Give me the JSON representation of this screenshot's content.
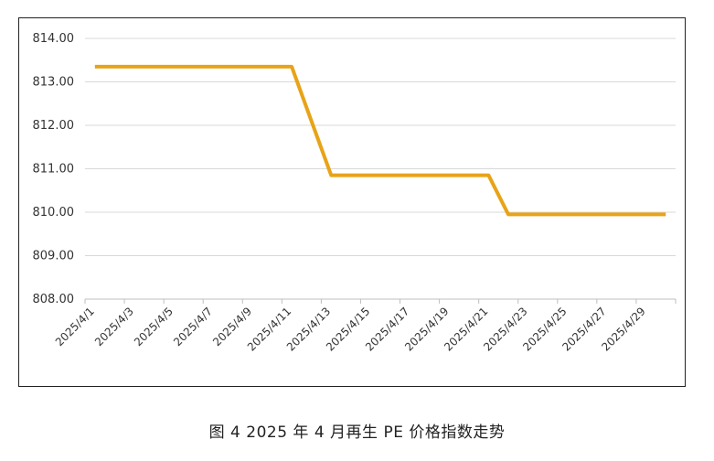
{
  "caption": "图 4  2025 年 4 月再生 PE 价格指数走势",
  "chart_data": {
    "type": "line",
    "title": "",
    "xlabel": "",
    "ylabel": "",
    "ylim": [
      808,
      814
    ],
    "yticks": [
      "808.00",
      "809.00",
      "810.00",
      "811.00",
      "812.00",
      "813.00",
      "814.00"
    ],
    "ytick_values": [
      808,
      809,
      810,
      811,
      812,
      813,
      814
    ],
    "grid": true,
    "x": [
      "2025/4/1",
      "2025/4/2",
      "2025/4/3",
      "2025/4/4",
      "2025/4/5",
      "2025/4/6",
      "2025/4/7",
      "2025/4/8",
      "2025/4/9",
      "2025/4/10",
      "2025/4/11",
      "2025/4/12",
      "2025/4/13",
      "2025/4/14",
      "2025/4/15",
      "2025/4/16",
      "2025/4/17",
      "2025/4/18",
      "2025/4/19",
      "2025/4/20",
      "2025/4/21",
      "2025/4/22",
      "2025/4/23",
      "2025/4/24",
      "2025/4/25",
      "2025/4/26",
      "2025/4/27",
      "2025/4/28",
      "2025/4/29",
      "2025/4/30"
    ],
    "xtick_labels": [
      "2025/4/1",
      "2025/4/3",
      "2025/4/5",
      "2025/4/7",
      "2025/4/9",
      "2025/4/11",
      "2025/4/13",
      "2025/4/15",
      "2025/4/17",
      "2025/4/19",
      "2025/4/21",
      "2025/4/23",
      "2025/4/25",
      "2025/4/27",
      "2025/4/29"
    ],
    "series": [
      {
        "color": "#E8A317",
        "values": [
          813.35,
          813.35,
          813.35,
          813.35,
          813.35,
          813.35,
          813.35,
          813.35,
          813.35,
          813.35,
          813.35,
          812.1,
          810.85,
          810.85,
          810.85,
          810.85,
          810.85,
          810.85,
          810.85,
          810.85,
          810.85,
          809.95,
          809.95,
          809.95,
          809.95,
          809.95,
          809.95,
          809.95,
          809.95,
          809.95
        ]
      }
    ]
  }
}
